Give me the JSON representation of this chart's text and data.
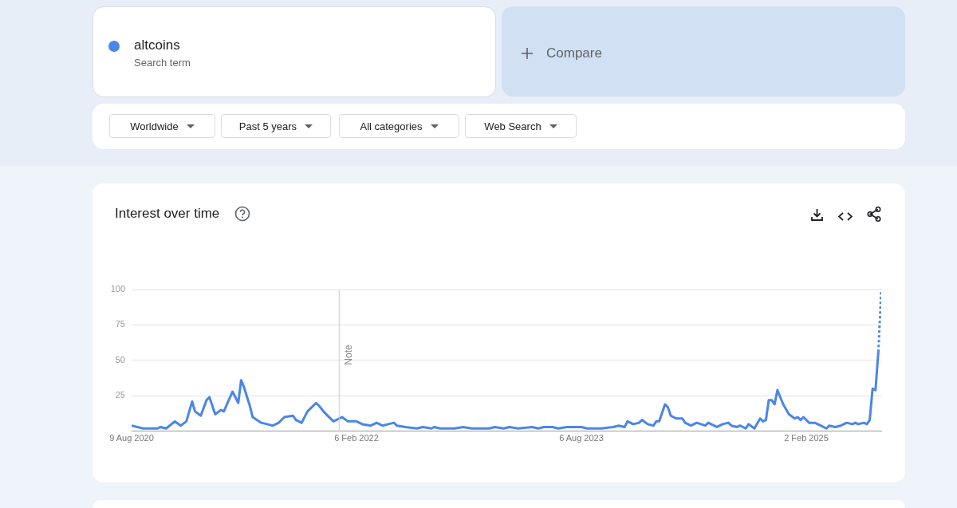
{
  "chart_data": {
    "type": "line",
    "title": "Interest over time",
    "annotations": [
      "Search term",
      "Compare",
      "Worldwide",
      "Past 5 years",
      "All categories",
      "Web Search"
    ],
    "xlim": [
      "2020-08-09",
      "2025-08-03"
    ],
    "xticks": [
      {
        "value": "2020-08-09",
        "label": "9 Aug 2020"
      },
      {
        "value": "2022-02-06",
        "label": "6 Feb 2022"
      },
      {
        "value": "2023-08-06",
        "label": "6 Aug 2023"
      },
      {
        "value": "2025-02-02",
        "label": "2 Feb 2025"
      }
    ],
    "ylim": [
      0,
      100
    ],
    "yticks": [
      25,
      50,
      75,
      100
    ],
    "grid": "y",
    "legend": "top left",
    "marker": "none",
    "ref_lines": [
      {
        "axis": "x",
        "value": "2021-12-26",
        "label": "Note"
      }
    ],
    "series": [
      {
        "name": "altcoins",
        "color": "#4a86e8",
        "line_style": "solid",
        "x": [
          "2020-08-09",
          "2020-09-06",
          "2020-10-11",
          "2020-10-18",
          "2020-11-01",
          "2020-11-22",
          "2020-12-06",
          "2020-12-20",
          "2021-01-03",
          "2021-01-10",
          "2021-01-24",
          "2021-02-07",
          "2021-02-14",
          "2021-02-28",
          "2021-03-14",
          "2021-03-21",
          "2021-04-11",
          "2021-04-25",
          "2021-05-02",
          "2021-05-09",
          "2021-05-23",
          "2021-05-30",
          "2021-06-20",
          "2021-07-04",
          "2021-07-18",
          "2021-08-01",
          "2021-08-15",
          "2021-09-05",
          "2021-09-12",
          "2021-09-26",
          "2021-10-10",
          "2021-10-17",
          "2021-10-31",
          "2021-11-07",
          "2021-11-21",
          "2021-12-12",
          "2022-01-02",
          "2022-01-16",
          "2022-02-06",
          "2022-02-20",
          "2022-03-13",
          "2022-03-27",
          "2022-04-10",
          "2022-04-24",
          "2022-05-08",
          "2022-05-15",
          "2022-06-05",
          "2022-07-03",
          "2022-07-17",
          "2022-08-07",
          "2022-08-14",
          "2022-08-28",
          "2022-10-02",
          "2022-10-23",
          "2022-11-13",
          "2022-12-25",
          "2023-01-08",
          "2023-01-29",
          "2023-02-12",
          "2023-03-05",
          "2023-04-09",
          "2023-04-23",
          "2023-05-07",
          "2023-05-28",
          "2023-06-11",
          "2023-07-02",
          "2023-08-06",
          "2023-08-20",
          "2023-09-24",
          "2023-10-22",
          "2023-11-05",
          "2023-11-19",
          "2023-11-26",
          "2023-12-10",
          "2023-12-24",
          "2023-12-31",
          "2024-01-14",
          "2024-01-28",
          "2024-02-04",
          "2024-02-11",
          "2024-02-25",
          "2024-03-03",
          "2024-03-10",
          "2024-03-24",
          "2024-04-07",
          "2024-04-14",
          "2024-04-28",
          "2024-05-12",
          "2024-06-02",
          "2024-06-09",
          "2024-06-30",
          "2024-07-14",
          "2024-07-28",
          "2024-08-04",
          "2024-08-18",
          "2024-08-25",
          "2024-09-08",
          "2024-09-15",
          "2024-09-29",
          "2024-10-13",
          "2024-10-20",
          "2024-10-27",
          "2024-11-03",
          "2024-11-10",
          "2024-11-17",
          "2024-11-24",
          "2024-12-08",
          "2024-12-22",
          "2025-01-05",
          "2025-01-12",
          "2025-01-19",
          "2025-01-26",
          "2025-02-09",
          "2025-02-23",
          "2025-03-09",
          "2025-03-23",
          "2025-03-30",
          "2025-04-13",
          "2025-04-27",
          "2025-05-11",
          "2025-05-25",
          "2025-06-01",
          "2025-06-08",
          "2025-06-22",
          "2025-06-29",
          "2025-07-06",
          "2025-07-13",
          "2025-07-20",
          "2025-07-27"
        ],
        "values": [
          4,
          2,
          2,
          3,
          2,
          7,
          4,
          7,
          21,
          14,
          11,
          22,
          24,
          12,
          15,
          14,
          28,
          20,
          36,
          31,
          18,
          10,
          6,
          5,
          4,
          6,
          10,
          11,
          8,
          6,
          14,
          16,
          20,
          18,
          13,
          7,
          10,
          7,
          7,
          5,
          4,
          6,
          4,
          5,
          6,
          4,
          3,
          2,
          3,
          2,
          3,
          2,
          2,
          3,
          2,
          2,
          3,
          2,
          3,
          2,
          3,
          2,
          3,
          3,
          2,
          3,
          3,
          2,
          2,
          3,
          4,
          3,
          7,
          5,
          6,
          8,
          5,
          4,
          7,
          7,
          19,
          17,
          11,
          9,
          9,
          6,
          4,
          6,
          4,
          6,
          3,
          5,
          6,
          4,
          3,
          4,
          2,
          5,
          2,
          9,
          7,
          8,
          22,
          22,
          19,
          29,
          19,
          12,
          9,
          10,
          8,
          10,
          6,
          6,
          4,
          2,
          4,
          3,
          4,
          6,
          5,
          6,
          5,
          6,
          5,
          8,
          30,
          29,
          56
        ]
      },
      {
        "color": "#4a86e8",
        "line_style": "dotted",
        "x": [
          "2025-07-27",
          "2025-08-03"
        ],
        "values": [
          56,
          100
        ]
      }
    ]
  }
}
